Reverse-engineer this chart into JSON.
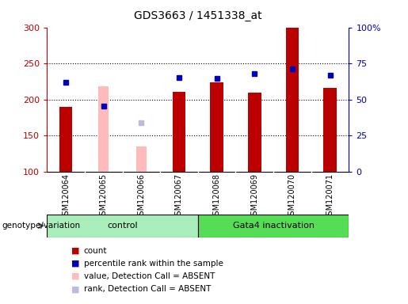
{
  "title": "GDS3663 / 1451338_at",
  "samples": [
    "GSM120064",
    "GSM120065",
    "GSM120066",
    "GSM120067",
    "GSM120068",
    "GSM120069",
    "GSM120070",
    "GSM120071"
  ],
  "red_bar_values": [
    190,
    null,
    null,
    211,
    224,
    210,
    300,
    216
  ],
  "pink_bar_values": [
    null,
    218,
    135,
    null,
    null,
    null,
    null,
    null
  ],
  "blue_sq_values": [
    224,
    191,
    null,
    230,
    229,
    236,
    242,
    234
  ],
  "light_blue_sq_values": [
    null,
    null,
    168,
    null,
    null,
    null,
    null,
    null
  ],
  "ylim": [
    100,
    300
  ],
  "yticks_left": [
    100,
    150,
    200,
    250,
    300
  ],
  "ytick_labels_left": [
    "100",
    "150",
    "200",
    "250",
    "300"
  ],
  "yticks_right": [
    100,
    150,
    200,
    250,
    300
  ],
  "ytick_labels_right": [
    "0",
    "25",
    "50",
    "75",
    "100%"
  ],
  "bar_width": 0.35,
  "red_color": "#bb0000",
  "pink_color": "#ffbbbb",
  "blue_color": "#0000bb",
  "light_blue_color": "#bbbbdd",
  "control_label": "control",
  "gata4_label": "Gata4 inactivation",
  "genotype_label": "genotype/variation",
  "legend_items": [
    "count",
    "percentile rank within the sample",
    "value, Detection Call = ABSENT",
    "rank, Detection Call = ABSENT"
  ],
  "tick_area_bg": "#cccccc",
  "group_bg_control": "#aaeebb",
  "group_bg_gata4": "#55dd55"
}
